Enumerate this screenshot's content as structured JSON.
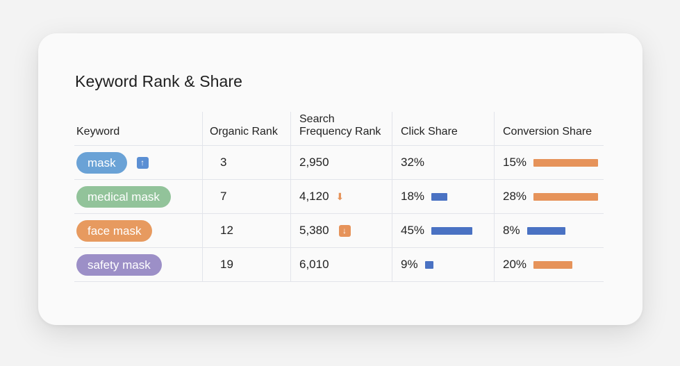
{
  "title": "Keyword Rank & Share",
  "headers": {
    "keyword": "Keyword",
    "organic_rank": "Organic Rank",
    "search_frequency_line1": "Search",
    "search_frequency_line2": "Frequency Rank",
    "click_share": "Click Share",
    "conversion_share": "Conversion Share"
  },
  "colors": {
    "bar_blue": "#4a72c3",
    "bar_orange": "#e6935a",
    "arrow_blue": "#5b8fd3"
  },
  "rows": [
    {
      "keyword": "mask",
      "pill_color": "#6aa2d6",
      "trend_icon": "arrow-up-icon",
      "trend_glyph": "↑",
      "organic_rank": "3",
      "search_frequency_rank": "2,950",
      "search_trend_icon": "",
      "search_trend_glyph": "",
      "click_share": "32%",
      "click_share_value": 0.32,
      "click_bar_color": "",
      "conversion_share": "15%",
      "conversion_share_value": 0.15,
      "conversion_bar_color": "#e6935a"
    },
    {
      "keyword": "medical mask",
      "pill_color": "#92c39a",
      "trend_icon": "",
      "trend_glyph": "",
      "organic_rank": "7",
      "search_frequency_rank": "4,120",
      "search_trend_icon": "arrow-down-icon",
      "search_trend_glyph": "⬇",
      "click_share": "18%",
      "click_share_value": 0.18,
      "click_bar_color": "#4a72c3",
      "conversion_share": "28%",
      "conversion_share_value": 0.28,
      "conversion_bar_color": "#e6935a"
    },
    {
      "keyword": "face mask",
      "pill_color": "#e79a5f",
      "trend_icon": "",
      "trend_glyph": "",
      "organic_rank": "12",
      "search_frequency_rank": "5,380",
      "search_trend_icon": "arrow-down-box-icon",
      "search_trend_glyph": "↓",
      "click_share": "45%",
      "click_share_value": 0.45,
      "click_bar_color": "#4a72c3",
      "conversion_share": "8%",
      "conversion_share_value": 0.08,
      "conversion_bar_color": "#4a72c3"
    },
    {
      "keyword": "safety mask",
      "pill_color": "#9c8fc7",
      "trend_icon": "",
      "trend_glyph": "",
      "organic_rank": "19",
      "search_frequency_rank": "6,010",
      "search_trend_icon": "",
      "search_trend_glyph": "",
      "click_share": "9%",
      "click_share_value": 0.09,
      "click_bar_color": "#4a72c3",
      "conversion_share": "20%",
      "conversion_share_value": 0.2,
      "conversion_bar_color": "#e6935a"
    }
  ]
}
